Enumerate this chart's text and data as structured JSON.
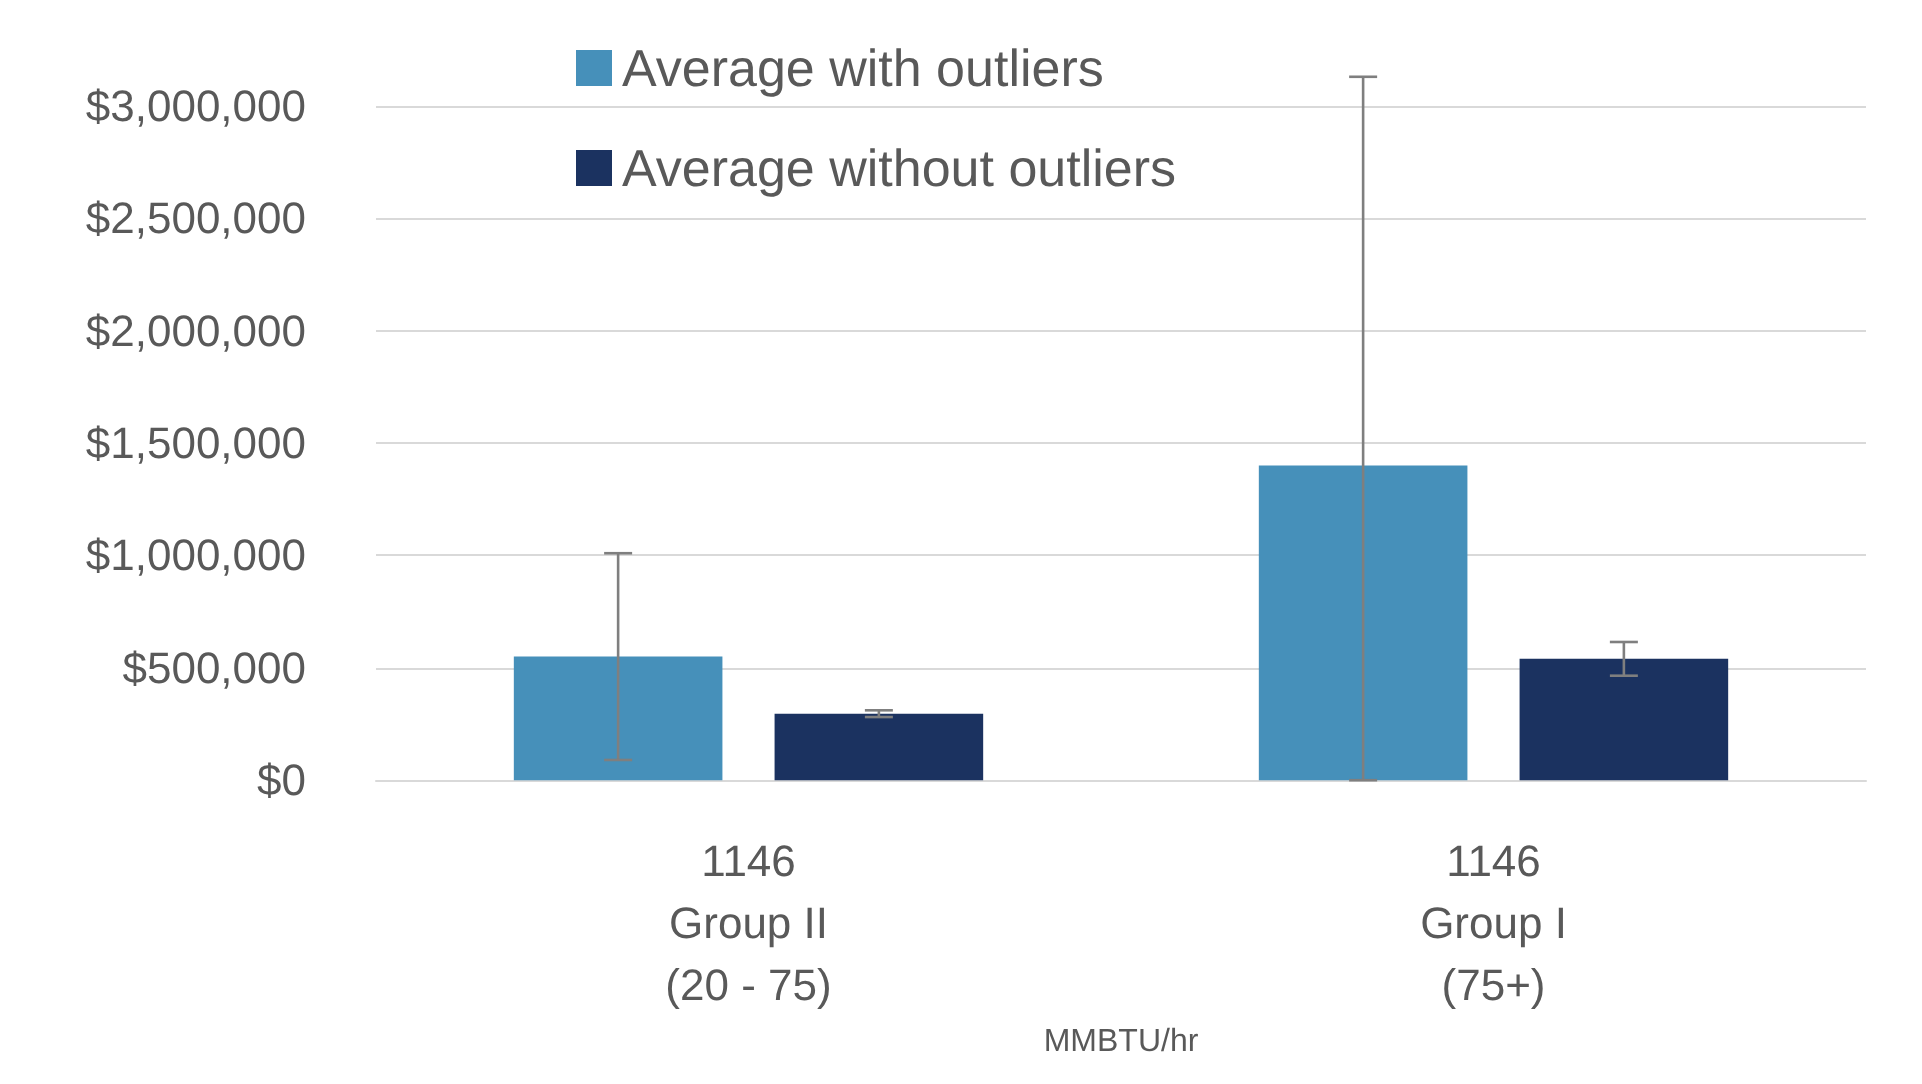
{
  "chart_data": {
    "type": "bar",
    "categories": [
      "1146\nGroup II\n(20 - 75)",
      "1146\nGroup I\n(75+)"
    ],
    "xlabel": "MMBTU/hr",
    "series": [
      {
        "name": "Average with outliers",
        "color": "#4690ba",
        "values": [
          550000,
          1400000
        ],
        "errors": [
          460000,
          [
            0,
            3130000
          ]
        ]
      },
      {
        "name": "Average without outliers",
        "color": "#1b3260",
        "values": [
          296000,
          540000
        ],
        "errors": [
          15000,
          75000
        ]
      }
    ],
    "ylim": [
      0,
      3000000
    ],
    "yticks": [
      {
        "value": 0,
        "label": "$0"
      },
      {
        "value": 500000,
        "label": "$500,000"
      },
      {
        "value": 1000000,
        "label": "$1,000,000"
      },
      {
        "value": 1500000,
        "label": "$1,500,000"
      },
      {
        "value": 2000000,
        "label": "$2,000,000"
      },
      {
        "value": 2500000,
        "label": "$2,500,000"
      },
      {
        "value": 3000000,
        "label": "$3,000,000"
      }
    ],
    "grid": "y",
    "legend": "top"
  }
}
